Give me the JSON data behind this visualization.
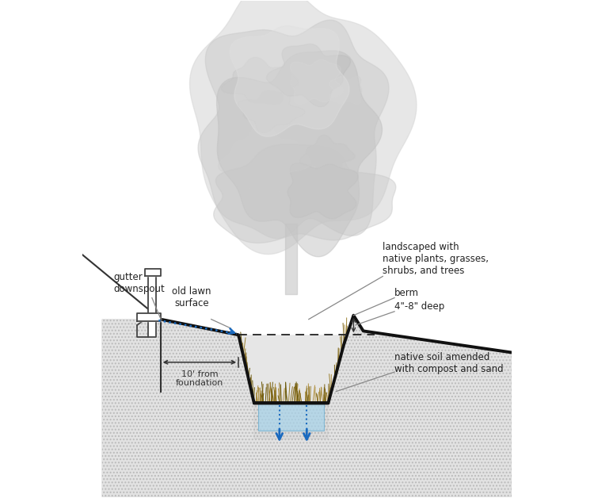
{
  "bg_color": "#ffffff",
  "soil_fill_color": "#e2e2e2",
  "soil_edge_color": "#bbbbbb",
  "interior_fill_color": "#e8e8e8",
  "blue_water_color": "#aad4ea",
  "blue_water_edge": "#6aaed0",
  "line_color": "#111111",
  "blue_color": "#1a6abf",
  "annotation_color": "#222222",
  "gray_line": "#888888",
  "tree_main": "#d2d2d2",
  "tree_dark": "#c0c0c0",
  "tree_light": "#dcdcdc",
  "trunk_color": "#c8c8c8",
  "grass_colors": [
    "#7a6010",
    "#8a7020",
    "#9a8030",
    "#6a5808",
    "#b09040"
  ],
  "labels": {
    "gutter_downspout": "gutter\ndownspout",
    "old_lawn_surface": "old lawn\nsurface",
    "landscaped": "landscaped with\nnative plants, grasses,\nshrubs, and trees",
    "berm": "berm",
    "depth": "4\"-8\" deep",
    "native_soil": "native soil amended\nwith compost and sand",
    "foundation": "10' from\nfoundation"
  },
  "figsize": [
    7.5,
    6.28
  ],
  "dpi": 100
}
